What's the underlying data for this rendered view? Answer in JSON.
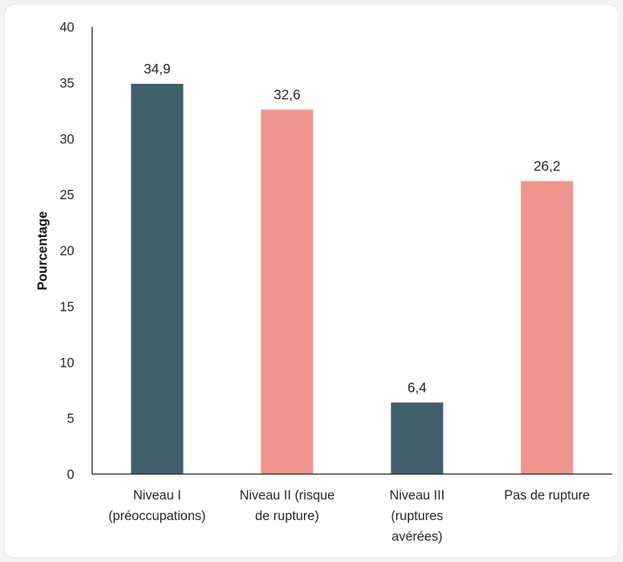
{
  "chart_data": {
    "type": "bar",
    "ylabel": "Pourcentage",
    "ylim": [
      0,
      40
    ],
    "yticks": [
      0,
      5,
      10,
      15,
      20,
      25,
      30,
      35,
      40
    ],
    "grid": false,
    "legend": "none",
    "categories": [
      [
        "Niveau I",
        "(préoccupations)"
      ],
      [
        "Niveau II (risque",
        "de rupture)"
      ],
      [
        "Niveau III",
        "(ruptures",
        "avérées)"
      ],
      [
        "Pas de rupture"
      ]
    ],
    "values": [
      34.9,
      32.6,
      6.4,
      26.2
    ],
    "data_labels": [
      "34,9",
      "32,6",
      "6,4",
      "26,2"
    ],
    "colors": [
      "#425f6e",
      "#f0968f",
      "#425f6e",
      "#f0968f"
    ]
  }
}
